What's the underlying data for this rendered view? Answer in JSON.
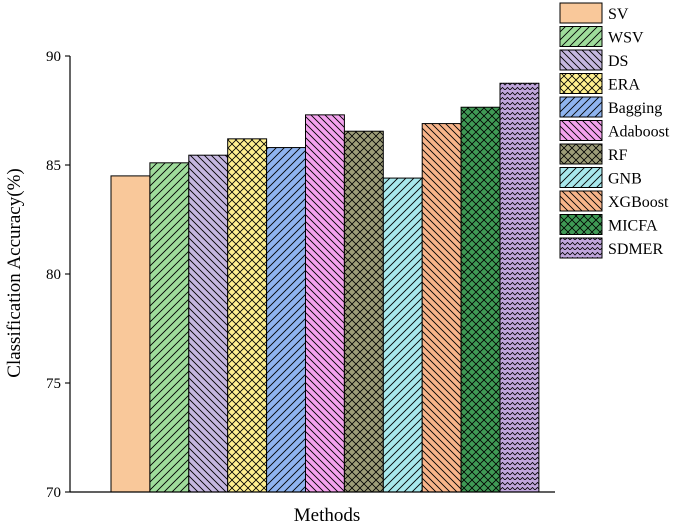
{
  "chart_data": {
    "type": "bar",
    "title": "",
    "xlabel": "Methods",
    "ylabel": "Classification Accuracy(%)",
    "ylim": [
      70,
      90
    ],
    "yticks": [
      "70",
      "75",
      "80",
      "85",
      "90"
    ],
    "grid": false,
    "legend_position": "top-right (outside plot)",
    "series": [
      {
        "name": "SV",
        "value": 84.5,
        "color": "#f9c89a",
        "pattern": "solid"
      },
      {
        "name": "WSV",
        "value": 85.1,
        "color": "#9fdc9b",
        "pattern": "diagonal-up"
      },
      {
        "name": "DS",
        "value": 85.45,
        "color": "#c5b7e0",
        "pattern": "diagonal-down"
      },
      {
        "name": "ERA",
        "value": 86.2,
        "color": "#fff08f",
        "pattern": "crosshatch"
      },
      {
        "name": "Bagging",
        "value": 85.8,
        "color": "#8fb4ef",
        "pattern": "diagonal-up"
      },
      {
        "name": "Adaboost",
        "value": 87.3,
        "color": "#f4a2ee",
        "pattern": "diagonal-down"
      },
      {
        "name": "RF",
        "value": 86.55,
        "color": "#9d9d78",
        "pattern": "crosshatch"
      },
      {
        "name": "GNB",
        "value": 84.4,
        "color": "#a8e8ec",
        "pattern": "diagonal-up"
      },
      {
        "name": "XGBoost",
        "value": 86.9,
        "color": "#f7b48a",
        "pattern": "diagonal-down"
      },
      {
        "name": "MICFA",
        "value": 87.65,
        "color": "#3f9a55",
        "pattern": "crosshatch"
      },
      {
        "name": "SDMER",
        "value": 88.75,
        "color": "#c0a6dc",
        "pattern": "zigzag"
      }
    ]
  }
}
